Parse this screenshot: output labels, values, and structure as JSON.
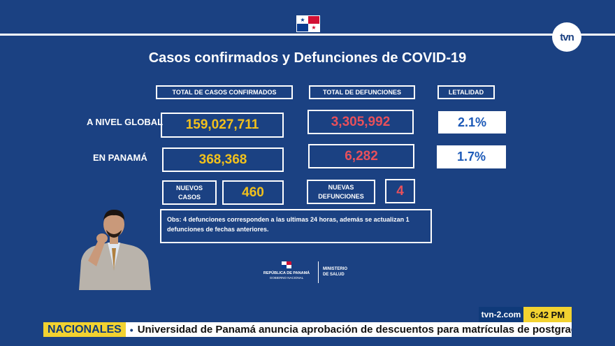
{
  "title": "Casos confirmados y Defunciones de COVID-19",
  "channel_logo": "tvn",
  "headers": {
    "total_cases": "TOTAL DE CASOS CONFIRMADOS",
    "total_deaths": "TOTAL DE DEFUNCIONES",
    "lethality": "LETALIDAD"
  },
  "rows": {
    "global": {
      "label": "A NIVEL GLOBAL",
      "cases": "159,027,711",
      "deaths": "3,305,992",
      "lethality": "2.1%"
    },
    "panama": {
      "label": "EN PANAMÁ",
      "cases": "368,368",
      "deaths": "6,282",
      "lethality": "1.7%"
    }
  },
  "new": {
    "cases_label_1": "NUEVOS",
    "cases_label_2": "CASOS",
    "cases_value": "460",
    "deaths_label_1": "NUEVAS",
    "deaths_label_2": "DEFUNCIONES",
    "deaths_value": "4"
  },
  "obs": "Obs: 4 defunciones corresponden a las ultimas 24 horas, además se actualizan  1 defunciones de fechas anteriores.",
  "gov": {
    "republic": "REPÚBLICA DE PANAMÁ",
    "gobierno": "GOBIERNO NACIONAL",
    "ministerio_1": "MINISTERIO",
    "ministerio_2": "DE SALUD"
  },
  "lower_third": {
    "site": "tvn-2.com",
    "time": "6:42 PM",
    "section": "NACIONALES",
    "headline": "Universidad de Panamá anuncia aprobación de descuentos  para matrículas de postgrados"
  },
  "icons": [
    "panama-flag-icon",
    "tvn-logo-icon",
    "interpreter-image"
  ]
}
